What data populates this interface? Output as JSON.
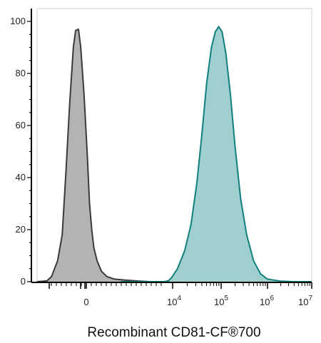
{
  "chart_data": {
    "type": "area",
    "title": "",
    "xlabel": "Recombinant CD81-CF®700",
    "ylabel": "",
    "xscale": "biexponential (log-like)",
    "x_tick_labels": [
      {
        "base": "0",
        "exp": ""
      },
      {
        "base": "10",
        "exp": "4"
      },
      {
        "base": "10",
        "exp": "5"
      },
      {
        "base": "10",
        "exp": "6"
      },
      {
        "base": "10",
        "exp": "7"
      }
    ],
    "y_ticks": [
      0,
      20,
      40,
      60,
      80,
      100
    ],
    "ylim": [
      0,
      100
    ],
    "grid": false,
    "legend": "none",
    "series": [
      {
        "color_fill": "#b3b3b3",
        "color_line": "#3a3a3a",
        "points": [
          [
            -1.6,
            0
          ],
          [
            -1.1,
            0
          ],
          [
            -0.85,
            0.3
          ],
          [
            -0.75,
            2
          ],
          [
            -0.62,
            8
          ],
          [
            -0.52,
            18
          ],
          [
            -0.44,
            42
          ],
          [
            -0.36,
            68
          ],
          [
            -0.28,
            90
          ],
          [
            -0.23,
            96.5
          ],
          [
            -0.17,
            97
          ],
          [
            -0.12,
            90
          ],
          [
            -0.05,
            72
          ],
          [
            0.05,
            48
          ],
          [
            0.15,
            30
          ],
          [
            0.25,
            20
          ],
          [
            0.35,
            13
          ],
          [
            0.5,
            8
          ],
          [
            0.7,
            4
          ],
          [
            0.95,
            2
          ],
          [
            1.3,
            1
          ],
          [
            1.8,
            0.6
          ],
          [
            2.3,
            0.3
          ],
          [
            2.7,
            0.1
          ],
          [
            3.0,
            0
          ]
        ]
      },
      {
        "color_fill": "#9fd0cf",
        "color_line": "#127f7f",
        "points": [
          [
            1.6,
            0
          ],
          [
            3.6,
            0
          ],
          [
            3.8,
            0.3
          ],
          [
            3.95,
            1.5
          ],
          [
            4.1,
            5
          ],
          [
            4.25,
            12
          ],
          [
            4.38,
            22
          ],
          [
            4.5,
            38
          ],
          [
            4.6,
            56
          ],
          [
            4.7,
            76
          ],
          [
            4.8,
            90
          ],
          [
            4.88,
            96
          ],
          [
            4.95,
            98
          ],
          [
            5.02,
            96
          ],
          [
            5.1,
            88
          ],
          [
            5.2,
            72
          ],
          [
            5.3,
            52
          ],
          [
            5.42,
            32
          ],
          [
            5.55,
            18
          ],
          [
            5.7,
            8
          ],
          [
            5.85,
            3
          ],
          [
            6.0,
            1
          ],
          [
            6.3,
            0.2
          ],
          [
            6.6,
            0
          ],
          [
            7.3,
            0
          ]
        ]
      }
    ]
  }
}
